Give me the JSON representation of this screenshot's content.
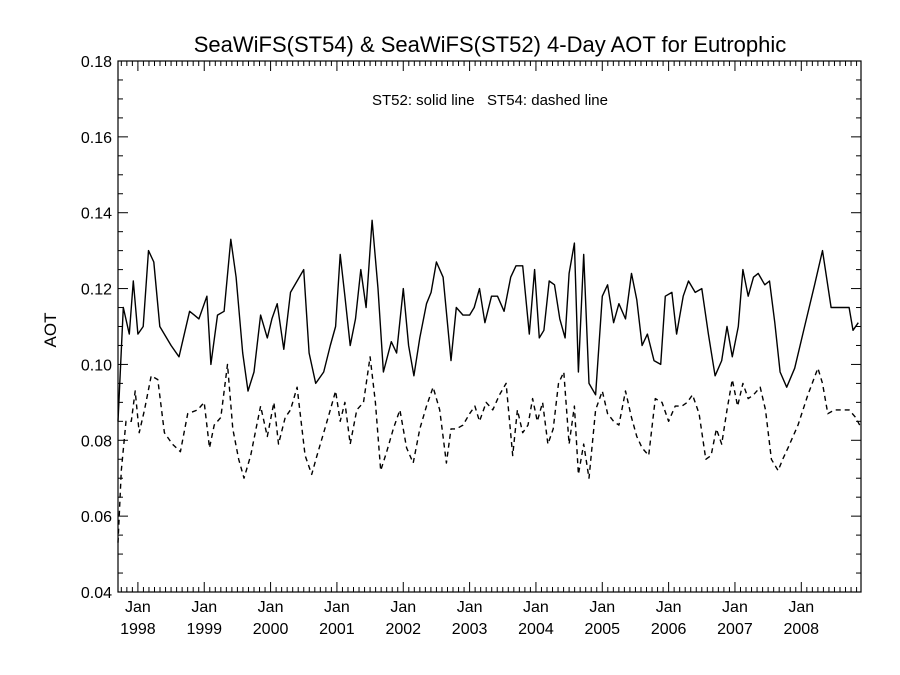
{
  "chart_data": {
    "type": "line",
    "title": "SeaWiFS(ST54) & SeaWiFS(ST52) 4-Day AOT for Eutrophic",
    "xlabel": "",
    "ylabel": "AOT",
    "annotation": "ST52: solid line   ST54: dashed line",
    "xlim": [
      1997.7,
      2008.9
    ],
    "ylim": [
      0.04,
      0.18
    ],
    "grid": false,
    "yticks": [
      "0.04",
      "0.06",
      "0.08",
      "0.10",
      "0.12",
      "0.14",
      "0.16",
      "0.18"
    ],
    "xticks": [
      {
        "month": "Jan",
        "year": "1998",
        "x": 1998.0
      },
      {
        "month": "Jan",
        "year": "1999",
        "x": 1999.0
      },
      {
        "month": "Jan",
        "year": "2000",
        "x": 2000.0
      },
      {
        "month": "Jan",
        "year": "2001",
        "x": 2001.0
      },
      {
        "month": "Jan",
        "year": "2002",
        "x": 2002.0
      },
      {
        "month": "Jan",
        "year": "2003",
        "x": 2003.0
      },
      {
        "month": "Jan",
        "year": "2004",
        "x": 2004.0
      },
      {
        "month": "Jan",
        "year": "2005",
        "x": 2005.0
      },
      {
        "month": "Jan",
        "year": "2006",
        "x": 2006.0
      },
      {
        "month": "Jan",
        "year": "2007",
        "x": 2007.0
      },
      {
        "month": "Jan",
        "year": "2008",
        "x": 2008.0
      }
    ],
    "series": [
      {
        "style": "solid",
        "x": [
          1997.7,
          1997.78,
          1997.87,
          1997.93,
          1998.0,
          1998.08,
          1998.16,
          1998.24,
          1998.33,
          1998.5,
          1998.62,
          1998.78,
          1998.85,
          1998.92,
          1999.04,
          1999.1,
          1999.2,
          1999.3,
          1999.4,
          1999.48,
          1999.58,
          1999.66,
          1999.75,
          1999.85,
          1999.95,
          2000.02,
          2000.1,
          2000.2,
          2000.3,
          2000.4,
          2000.5,
          2000.58,
          2000.68,
          2000.8,
          2000.9,
          2000.98,
          2001.05,
          2001.12,
          2001.2,
          2001.28,
          2001.36,
          2001.44,
          2001.53,
          2001.62,
          2001.7,
          2001.82,
          2001.9,
          2002.0,
          2002.08,
          2002.16,
          2002.25,
          2002.35,
          2002.42,
          2002.5,
          2002.6,
          2002.72,
          2002.8,
          2002.9,
          2003.0,
          2003.07,
          2003.15,
          2003.23,
          2003.33,
          2003.42,
          2003.52,
          2003.62,
          2003.7,
          2003.8,
          2003.9,
          2003.98,
          2004.05,
          2004.12,
          2004.2,
          2004.28,
          2004.36,
          2004.44,
          2004.5,
          2004.58,
          2004.64,
          2004.72,
          2004.8,
          2004.9,
          2005.0,
          2005.08,
          2005.17,
          2005.25,
          2005.35,
          2005.44,
          2005.52,
          2005.6,
          2005.68,
          2005.78,
          2005.88,
          2005.95,
          2006.05,
          2006.12,
          2006.22,
          2006.3,
          2006.4,
          2006.5,
          2006.6,
          2006.7,
          2006.8,
          2006.88,
          2006.96,
          2007.05,
          2007.12,
          2007.2,
          2007.28,
          2007.35,
          2007.45,
          2007.52,
          2007.6,
          2007.68,
          2007.78,
          2007.9,
          2008.05,
          2008.2,
          2008.32,
          2008.45,
          2008.55,
          2008.65,
          2008.72,
          2008.78,
          2008.86
        ],
        "values": [
          0.085,
          0.115,
          0.108,
          0.122,
          0.108,
          0.11,
          0.13,
          0.127,
          0.11,
          0.105,
          0.102,
          0.114,
          0.113,
          0.112,
          0.118,
          0.1,
          0.113,
          0.114,
          0.133,
          0.123,
          0.103,
          0.093,
          0.098,
          0.113,
          0.107,
          0.112,
          0.116,
          0.104,
          0.119,
          0.122,
          0.125,
          0.103,
          0.095,
          0.098,
          0.105,
          0.11,
          0.129,
          0.118,
          0.105,
          0.112,
          0.125,
          0.115,
          0.138,
          0.12,
          0.098,
          0.106,
          0.103,
          0.12,
          0.105,
          0.097,
          0.107,
          0.116,
          0.119,
          0.127,
          0.123,
          0.101,
          0.115,
          0.113,
          0.113,
          0.115,
          0.12,
          0.111,
          0.118,
          0.118,
          0.114,
          0.123,
          0.126,
          0.126,
          0.108,
          0.125,
          0.107,
          0.109,
          0.122,
          0.121,
          0.112,
          0.107,
          0.124,
          0.132,
          0.098,
          0.129,
          0.095,
          0.092,
          0.118,
          0.121,
          0.111,
          0.116,
          0.112,
          0.124,
          0.117,
          0.105,
          0.108,
          0.101,
          0.1,
          0.118,
          0.119,
          0.108,
          0.118,
          0.122,
          0.119,
          0.12,
          0.108,
          0.097,
          0.101,
          0.11,
          0.102,
          0.11,
          0.125,
          0.118,
          0.123,
          0.124,
          0.121,
          0.122,
          0.111,
          0.098,
          0.094,
          0.099,
          0.11,
          0.121,
          0.13,
          0.115,
          0.115,
          0.115,
          0.115,
          0.109,
          0.111
        ]
      },
      {
        "style": "dashed",
        "x": [
          1997.7,
          1997.75,
          1997.82,
          1997.9,
          1997.96,
          1998.02,
          1998.1,
          1998.2,
          1998.3,
          1998.4,
          1998.52,
          1998.64,
          1998.75,
          1998.9,
          1999.0,
          1999.08,
          1999.15,
          1999.25,
          1999.35,
          1999.43,
          1999.52,
          1999.6,
          1999.7,
          1999.78,
          1999.85,
          1999.95,
          2000.05,
          2000.12,
          2000.22,
          2000.3,
          2000.4,
          2000.52,
          2000.62,
          2000.7,
          2000.8,
          2000.9,
          2000.98,
          2001.05,
          2001.12,
          2001.2,
          2001.3,
          2001.4,
          2001.5,
          2001.58,
          2001.66,
          2001.75,
          2001.85,
          2001.95,
          2002.05,
          2002.15,
          2002.25,
          2002.35,
          2002.45,
          2002.55,
          2002.65,
          2002.72,
          2002.8,
          2002.9,
          2003.0,
          2003.08,
          2003.15,
          2003.25,
          2003.35,
          2003.45,
          2003.55,
          2003.65,
          2003.72,
          2003.8,
          2003.88,
          2003.95,
          2004.02,
          2004.1,
          2004.18,
          2004.26,
          2004.34,
          2004.42,
          2004.5,
          2004.58,
          2004.64,
          2004.72,
          2004.8,
          2004.9,
          2005.0,
          2005.08,
          2005.17,
          2005.25,
          2005.35,
          2005.44,
          2005.52,
          2005.6,
          2005.7,
          2005.8,
          2005.9,
          2006.0,
          2006.1,
          2006.2,
          2006.28,
          2006.36,
          2006.46,
          2006.56,
          2006.64,
          2006.72,
          2006.8,
          2006.88,
          2006.96,
          2007.04,
          2007.12,
          2007.2,
          2007.28,
          2007.38,
          2007.46,
          2007.55,
          2007.65,
          2007.72,
          2007.8,
          2007.95,
          2008.1,
          2008.25,
          2008.32,
          2008.4,
          2008.5,
          2008.62,
          2008.72,
          2008.82,
          2008.88
        ],
        "values": [
          0.053,
          0.072,
          0.085,
          0.085,
          0.093,
          0.082,
          0.088,
          0.097,
          0.096,
          0.082,
          0.079,
          0.077,
          0.087,
          0.088,
          0.09,
          0.078,
          0.084,
          0.086,
          0.1,
          0.083,
          0.075,
          0.07,
          0.076,
          0.083,
          0.089,
          0.081,
          0.09,
          0.079,
          0.086,
          0.088,
          0.094,
          0.076,
          0.071,
          0.076,
          0.082,
          0.088,
          0.093,
          0.085,
          0.09,
          0.079,
          0.088,
          0.09,
          0.102,
          0.09,
          0.072,
          0.077,
          0.083,
          0.088,
          0.078,
          0.074,
          0.083,
          0.089,
          0.094,
          0.088,
          0.074,
          0.083,
          0.083,
          0.084,
          0.087,
          0.089,
          0.085,
          0.09,
          0.088,
          0.092,
          0.095,
          0.076,
          0.088,
          0.082,
          0.084,
          0.091,
          0.085,
          0.09,
          0.079,
          0.083,
          0.095,
          0.098,
          0.079,
          0.089,
          0.071,
          0.079,
          0.07,
          0.088,
          0.093,
          0.087,
          0.085,
          0.084,
          0.093,
          0.086,
          0.081,
          0.078,
          0.076,
          0.091,
          0.09,
          0.085,
          0.089,
          0.089,
          0.09,
          0.092,
          0.087,
          0.075,
          0.076,
          0.083,
          0.079,
          0.088,
          0.096,
          0.089,
          0.095,
          0.091,
          0.092,
          0.094,
          0.088,
          0.075,
          0.072,
          0.075,
          0.078,
          0.084,
          0.092,
          0.099,
          0.095,
          0.087,
          0.088,
          0.088,
          0.088,
          0.086,
          0.084
        ]
      }
    ]
  }
}
